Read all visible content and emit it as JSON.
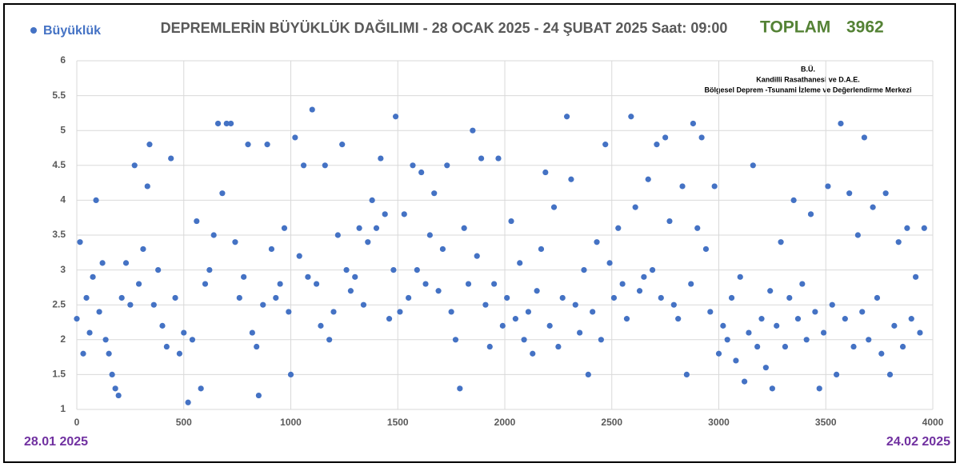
{
  "chart_data": {
    "type": "scatter",
    "title": "DEPREMLERİN BÜYÜKLÜK DAĞILIMI -  28 OCAK 2025 - 24 ŞUBAT 2025  Saat: 09:00",
    "total_label": "TOPLAM",
    "total": 3962,
    "credits": [
      "B.Ü.",
      "Kandilli Rasathanesi ve D.A.E.",
      "Bölgesel Deprem -Tsunami İzleme ve Değerlendirme Merkezi"
    ],
    "start_label": "28.01 2025",
    "end_label": "24.02 2025",
    "legend": "top-left",
    "grid": true,
    "xlim": [
      0,
      4000
    ],
    "xticks": [
      0,
      500,
      1000,
      1500,
      2000,
      2500,
      3000,
      3500,
      4000
    ],
    "ylim": [
      1,
      6
    ],
    "yticks": [
      1,
      1.5,
      2,
      2.5,
      3,
      3.5,
      4,
      4.5,
      5,
      5.5,
      6
    ],
    "series": [
      {
        "name": "Büyüklük",
        "color": "#4472c4",
        "x": [
          0,
          15,
          30,
          45,
          60,
          75,
          90,
          105,
          120,
          135,
          150,
          165,
          180,
          195,
          210,
          230,
          250,
          270,
          290,
          310,
          330,
          340,
          360,
          380,
          400,
          420,
          440,
          460,
          480,
          500,
          520,
          540,
          560,
          580,
          600,
          620,
          640,
          660,
          680,
          700,
          720,
          740,
          760,
          780,
          800,
          820,
          840,
          850,
          870,
          890,
          910,
          930,
          950,
          970,
          990,
          1000,
          1020,
          1040,
          1060,
          1080,
          1100,
          1120,
          1140,
          1160,
          1180,
          1200,
          1220,
          1240,
          1260,
          1280,
          1300,
          1320,
          1340,
          1360,
          1380,
          1400,
          1420,
          1440,
          1460,
          1480,
          1490,
          1510,
          1530,
          1550,
          1570,
          1590,
          1610,
          1630,
          1650,
          1670,
          1690,
          1710,
          1730,
          1750,
          1770,
          1790,
          1810,
          1830,
          1850,
          1870,
          1890,
          1910,
          1930,
          1950,
          1970,
          1990,
          2010,
          2030,
          2050,
          2070,
          2090,
          2110,
          2130,
          2150,
          2170,
          2190,
          2210,
          2230,
          2250,
          2270,
          2290,
          2310,
          2330,
          2350,
          2370,
          2390,
          2410,
          2430,
          2450,
          2470,
          2490,
          2510,
          2530,
          2550,
          2570,
          2590,
          2610,
          2630,
          2650,
          2670,
          2690,
          2710,
          2730,
          2750,
          2770,
          2790,
          2810,
          2830,
          2850,
          2870,
          2880,
          2900,
          2920,
          2940,
          2960,
          2980,
          3000,
          3020,
          3040,
          3060,
          3080,
          3100,
          3120,
          3140,
          3160,
          3180,
          3200,
          3220,
          3240,
          3250,
          3270,
          3290,
          3310,
          3330,
          3350,
          3370,
          3390,
          3410,
          3430,
          3450,
          3470,
          3490,
          3510,
          3530,
          3550,
          3570,
          3590,
          3610,
          3630,
          3650,
          3670,
          3680,
          3700,
          3720,
          3740,
          3760,
          3780,
          3800,
          3820,
          3840,
          3860,
          3880,
          3900,
          3920,
          3940,
          3960
        ],
        "values": [
          2.3,
          3.4,
          1.8,
          2.6,
          2.1,
          2.9,
          4.0,
          2.4,
          3.1,
          2.0,
          1.8,
          1.5,
          1.3,
          1.2,
          2.6,
          3.1,
          2.5,
          4.5,
          2.8,
          3.3,
          4.2,
          4.8,
          2.5,
          3.0,
          2.2,
          1.9,
          4.6,
          2.6,
          1.8,
          2.1,
          1.1,
          2.0,
          3.7,
          1.3,
          2.8,
          3.0,
          3.5,
          5.1,
          4.1,
          5.1,
          5.1,
          3.4,
          2.6,
          2.9,
          4.8,
          2.1,
          1.9,
          1.2,
          2.5,
          4.8,
          3.3,
          2.6,
          2.8,
          3.6,
          2.4,
          1.5,
          4.9,
          3.2,
          4.5,
          2.9,
          5.3,
          2.8,
          2.2,
          4.5,
          2.0,
          2.4,
          3.5,
          4.8,
          3.0,
          2.7,
          2.9,
          3.6,
          2.5,
          3.4,
          4.0,
          3.6,
          4.6,
          3.8,
          2.3,
          3.0,
          5.2,
          2.4,
          3.8,
          2.6,
          4.5,
          3.0,
          4.4,
          2.8,
          3.5,
          4.1,
          2.7,
          3.3,
          4.5,
          2.4,
          2.0,
          1.3,
          3.6,
          2.8,
          5.0,
          3.2,
          4.6,
          2.5,
          1.9,
          2.8,
          4.6,
          2.2,
          2.6,
          3.7,
          2.3,
          3.1,
          2.0,
          2.4,
          1.8,
          2.7,
          3.3,
          4.4,
          2.2,
          3.9,
          1.9,
          2.6,
          5.2,
          4.3,
          2.5,
          2.1,
          3.0,
          1.5,
          2.4,
          3.4,
          2.0,
          4.8,
          3.1,
          2.6,
          3.6,
          2.8,
          2.3,
          5.2,
          3.9,
          2.7,
          2.9,
          4.3,
          3.0,
          4.8,
          2.6,
          4.9,
          3.7,
          2.5,
          2.3,
          4.2,
          1.5,
          2.8,
          5.1,
          3.6,
          4.9,
          3.3,
          2.4,
          4.2,
          1.8,
          2.2,
          2.0,
          2.6,
          1.7,
          2.9,
          1.4,
          2.1,
          4.5,
          1.9,
          2.3,
          1.6,
          2.7,
          1.3,
          2.2,
          3.4,
          1.9,
          2.6,
          4.0,
          2.3,
          2.8,
          2.0,
          3.8,
          2.4,
          1.3,
          2.1,
          4.2,
          2.5,
          1.5,
          5.1,
          2.3,
          4.1,
          1.9,
          3.5,
          2.4,
          4.9,
          2.0,
          3.9,
          2.6,
          1.8,
          4.1,
          1.5,
          2.2,
          3.4,
          1.9,
          3.6,
          2.3,
          2.9,
          2.1,
          3.6
        ]
      }
    ]
  }
}
